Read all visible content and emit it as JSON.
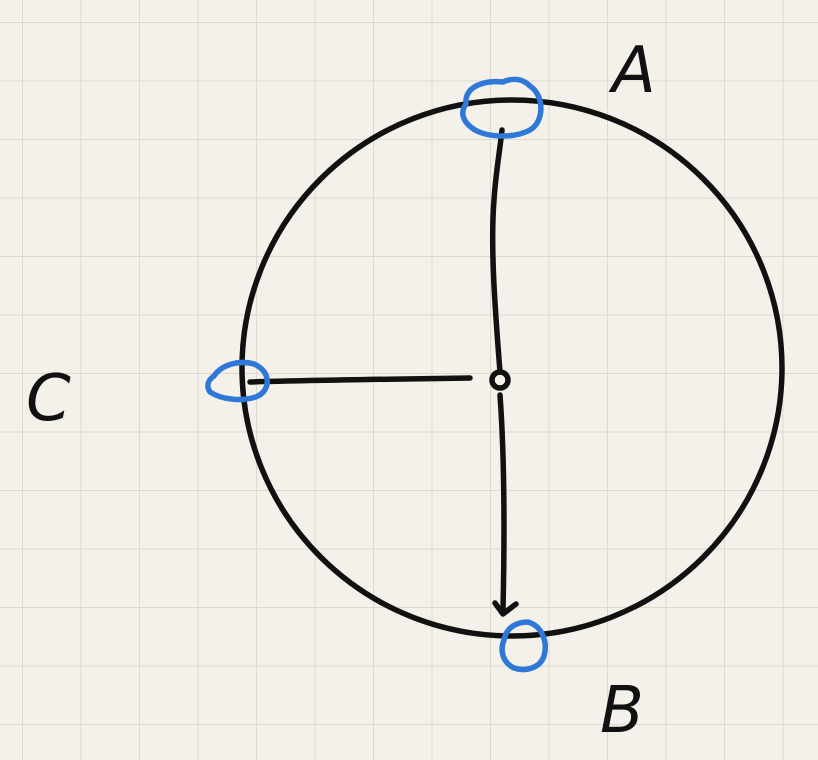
{
  "diagram": {
    "points": [
      {
        "id": "A",
        "label": "A"
      },
      {
        "id": "B",
        "label": "B"
      },
      {
        "id": "C",
        "label": "C"
      }
    ],
    "colors": {
      "paper": "#f4f1ea",
      "grid": "#ddd9cf",
      "ink": "#111111",
      "highlight": "#2f78d8"
    }
  }
}
